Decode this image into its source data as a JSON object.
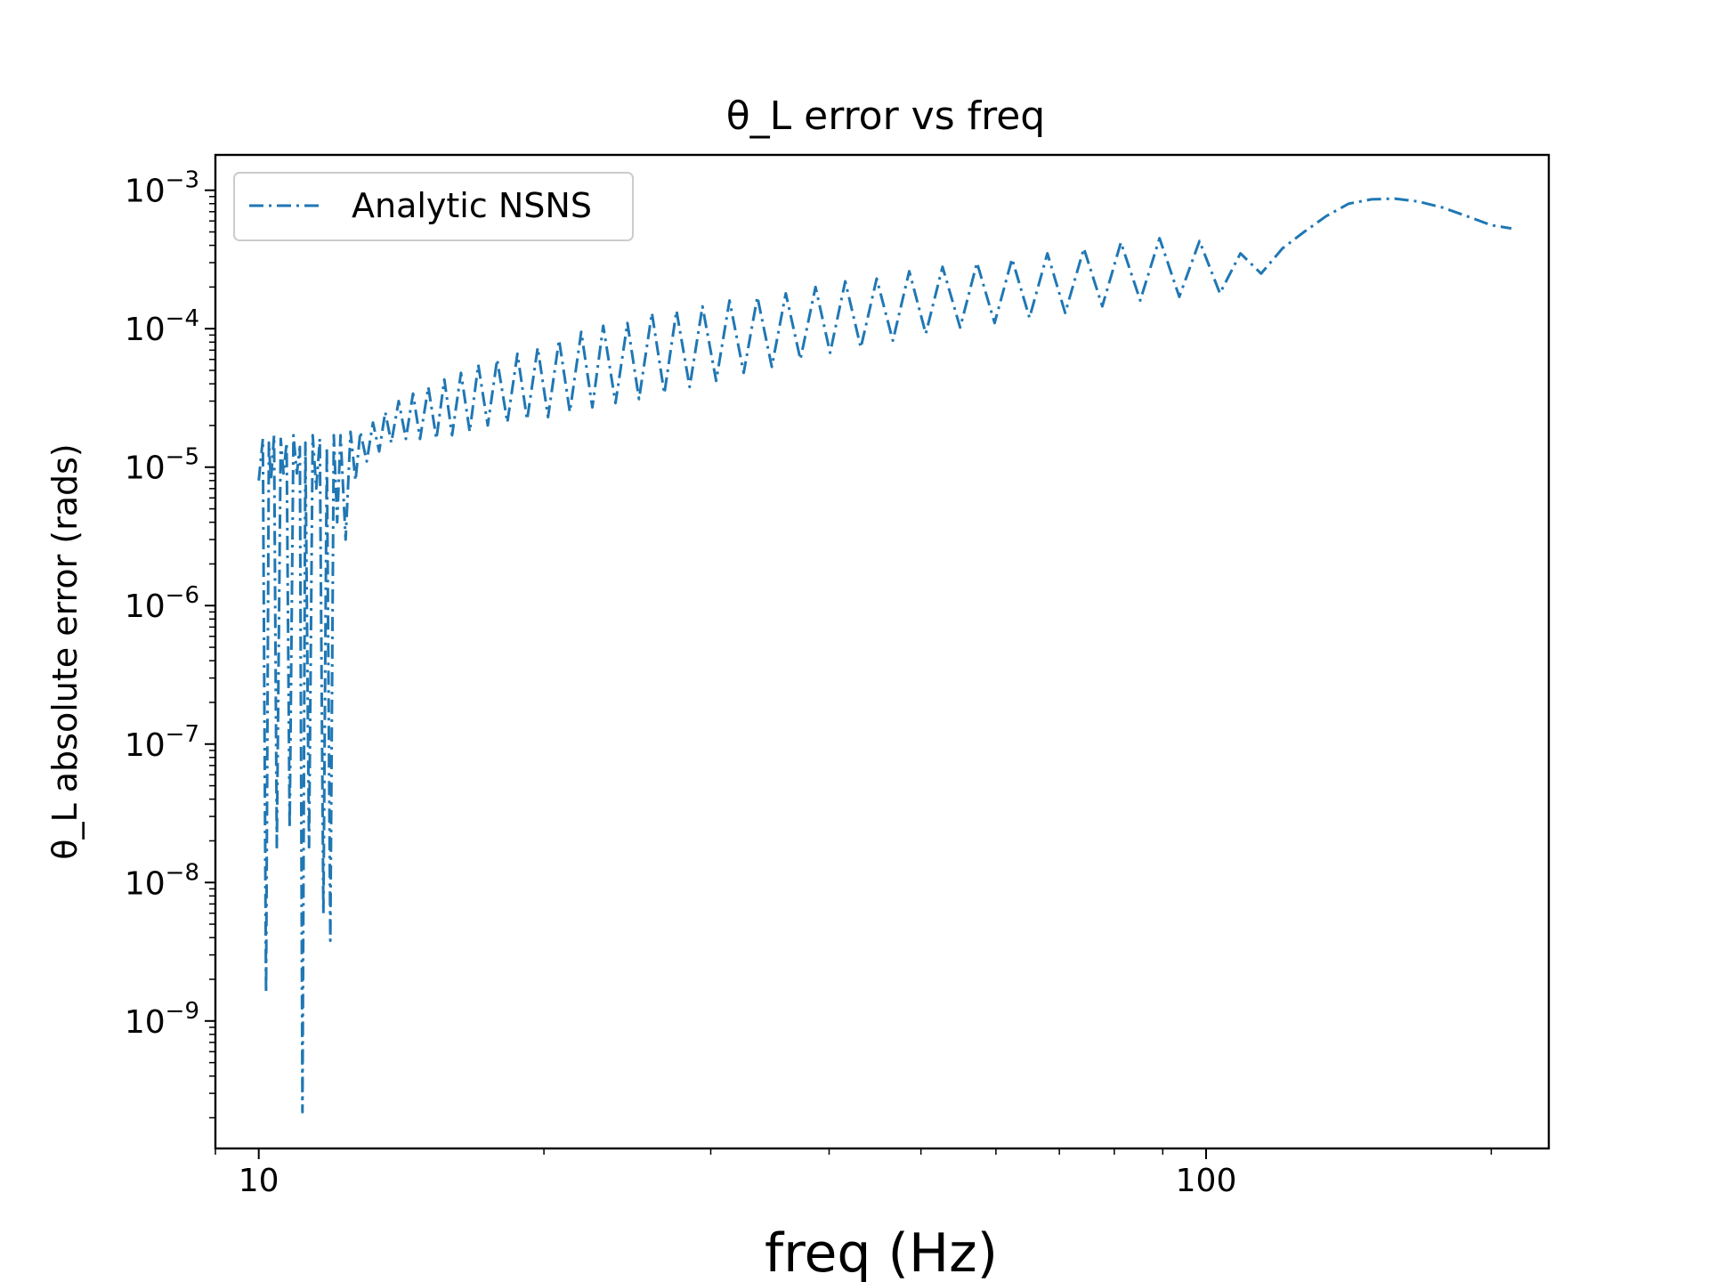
{
  "chart_data": {
    "type": "line",
    "title": "θ_L error vs freq",
    "xlabel": "freq (Hz)",
    "ylabel": "θ_L absolute error (rads)",
    "xscale": "log",
    "yscale": "log",
    "xlim": [
      9.0,
      230.0
    ],
    "ylim": [
      1.2e-10,
      0.0018
    ],
    "grid": false,
    "legend_position": "top-left",
    "x_major_ticks": [
      {
        "value": 10,
        "label": "10"
      },
      {
        "value": 100,
        "label": "100"
      }
    ],
    "x_minor_ticks": [
      9,
      20,
      30,
      40,
      50,
      60,
      70,
      80,
      90,
      200
    ],
    "y_major_ticks": [
      {
        "value": 1e-09,
        "base": "10",
        "exp": "−9"
      },
      {
        "value": 1e-08,
        "base": "10",
        "exp": "−8"
      },
      {
        "value": 1e-07,
        "base": "10",
        "exp": "−7"
      },
      {
        "value": 1e-06,
        "base": "10",
        "exp": "−6"
      },
      {
        "value": 1e-05,
        "base": "10",
        "exp": "−5"
      },
      {
        "value": 0.0001,
        "base": "10",
        "exp": "−4"
      },
      {
        "value": 0.001,
        "base": "10",
        "exp": "−3"
      }
    ],
    "series": [
      {
        "name": "Analytic NSNS",
        "color": "#1f77b4",
        "line_style": "dash-dot",
        "x": [
          10.0,
          10.1,
          10.18,
          10.25,
          10.3,
          10.38,
          10.45,
          10.55,
          10.62,
          10.7,
          10.78,
          10.88,
          10.97,
          11.05,
          11.12,
          11.2,
          11.3,
          11.4,
          11.5,
          11.6,
          11.7,
          11.8,
          11.9,
          12.0,
          12.1,
          12.2,
          12.35,
          12.5,
          12.65,
          12.8,
          13.0,
          13.2,
          13.4,
          13.6,
          13.8,
          14.05,
          14.3,
          14.55,
          14.8,
          15.1,
          15.4,
          15.7,
          16.0,
          16.35,
          16.7,
          17.05,
          17.45,
          17.85,
          18.3,
          18.75,
          19.2,
          19.7,
          20.2,
          20.75,
          21.3,
          21.9,
          22.5,
          23.1,
          23.8,
          24.5,
          25.2,
          26.0,
          26.8,
          27.6,
          28.5,
          29.4,
          30.4,
          31.4,
          32.5,
          33.6,
          34.8,
          36.0,
          37.3,
          38.7,
          40.1,
          41.6,
          43.2,
          44.9,
          46.7,
          48.6,
          50.6,
          52.7,
          55.0,
          57.3,
          59.8,
          62.4,
          65.1,
          68.0,
          71.0,
          74.3,
          77.7,
          81.3,
          85.2,
          89.3,
          93.7,
          98.4,
          103.4,
          108.7,
          114.3,
          120.4,
          126.9,
          133.9,
          141.4,
          149.5,
          158.2,
          167.5,
          177.6,
          188.5,
          200.0,
          210.0
        ],
        "y": [
          8e-06,
          1.6e-05,
          1.6e-09,
          1.5e-05,
          8e-06,
          1.7e-05,
          1.8e-08,
          1.6e-05,
          9e-06,
          1.5e-05,
          2.5e-08,
          1.7e-05,
          9e-06,
          1.4e-05,
          2.2e-10,
          1.5e-05,
          1.8e-08,
          1.7e-05,
          7e-06,
          1.6e-05,
          6e-09,
          1.4e-05,
          3.8e-09,
          1.7e-05,
          4e-06,
          1.7e-05,
          3e-06,
          1.8e-05,
          8e-06,
          1.8e-05,
          1.1e-05,
          2.1e-05,
          1.3e-05,
          2.5e-05,
          1.5e-05,
          3e-05,
          1.6e-05,
          3.4e-05,
          1.6e-05,
          3.8e-05,
          1.6e-05,
          4.3e-05,
          1.7e-05,
          4.8e-05,
          1.8e-05,
          5.5e-05,
          2e-05,
          6e-05,
          2.1e-05,
          6.6e-05,
          2.2e-05,
          7.3e-05,
          2.3e-05,
          8.3e-05,
          2.5e-05,
          9.5e-05,
          2.7e-05,
          0.000105,
          2.9e-05,
          0.00011,
          3.1e-05,
          0.00013,
          3.4e-05,
          0.000135,
          3.8e-05,
          0.000145,
          4.2e-05,
          0.00016,
          4.8e-05,
          0.00017,
          5.3e-05,
          0.00018,
          6e-05,
          0.0002,
          6.7e-05,
          0.00022,
          7.3e-05,
          0.00023,
          8.2e-05,
          0.00026,
          9.2e-05,
          0.00028,
          0.000102,
          0.0003,
          0.00011,
          0.00032,
          0.00012,
          0.00035,
          0.00013,
          0.00038,
          0.000145,
          0.00042,
          0.00016,
          0.00045,
          0.00017,
          0.00043,
          0.00018,
          0.00035,
          0.00025,
          0.00038,
          0.0005,
          0.00065,
          0.0008,
          0.00086,
          0.00087,
          0.00083,
          0.00075,
          0.00065,
          0.00056,
          0.00053
        ]
      }
    ]
  }
}
